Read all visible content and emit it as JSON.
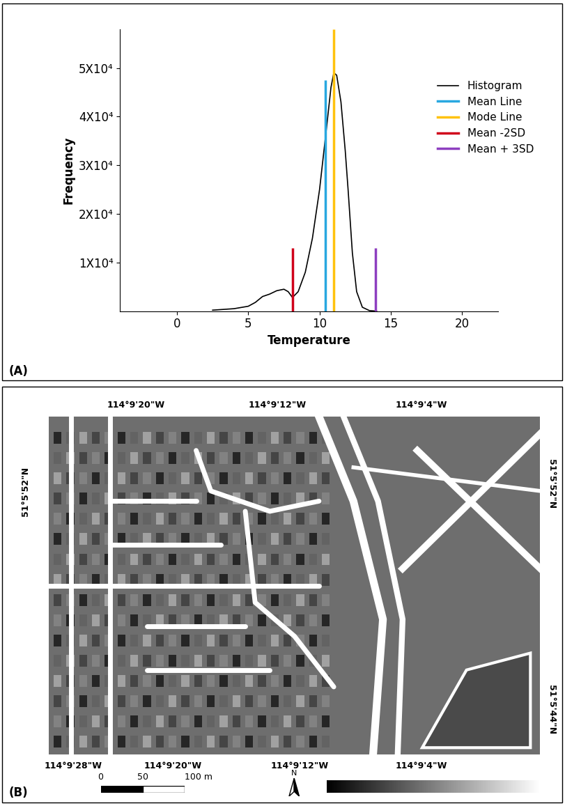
{
  "chart_data": {
    "type": "line",
    "x_label": "Temperature",
    "y_label": "Frequency",
    "xlim": [
      -4,
      22.5
    ],
    "xticks": [
      0,
      5,
      10,
      15,
      20
    ],
    "ylim": [
      0,
      58000
    ],
    "yticks": [
      {
        "value": 10000,
        "label": "1X10⁴"
      },
      {
        "value": 20000,
        "label": "2X10⁴"
      },
      {
        "value": 30000,
        "label": "3X10⁴"
      },
      {
        "value": 40000,
        "label": "4X10⁴"
      },
      {
        "value": 50000,
        "label": "5X10⁴"
      }
    ],
    "legend": "upper right",
    "series": [
      {
        "name": "Histogram",
        "color": "#000000",
        "x": [
          2.5,
          3,
          4,
          5,
          5.5,
          6,
          6.5,
          7,
          7.5,
          7.8,
          8.1,
          8.5,
          9,
          9.5,
          10,
          10.5,
          10.8,
          11,
          11.2,
          11.5,
          11.8,
          12,
          12.3,
          12.6,
          13,
          13.5,
          14
        ],
        "values": [
          200,
          300,
          500,
          1000,
          1800,
          3000,
          3500,
          4200,
          4500,
          4000,
          2800,
          4000,
          8000,
          15000,
          25000,
          38000,
          46000,
          49000,
          48500,
          43000,
          33000,
          25000,
          12000,
          4000,
          800,
          100,
          0
        ]
      }
    ],
    "lines": [
      {
        "name": "Mean Line",
        "color": "#29a8e0",
        "x": 10.4,
        "height": 47500
      },
      {
        "name": "Mode Line",
        "color": "#ffc20e",
        "x": 11.0,
        "height": 58000
      },
      {
        "name": "Mean -2SD",
        "color": "#d0021b",
        "x": 8.1,
        "height": 13000
      },
      {
        "name": "Mean + 3SD",
        "color": "#8e3fc0",
        "x": 13.9,
        "height": 13000
      }
    ]
  },
  "panel_labels": [
    "(A)",
    "(B)"
  ],
  "map": {
    "top_labels": [
      "114°9'20\"W",
      "114°9'12\"W",
      "114°9'4\"W"
    ],
    "bottom_labels": [
      "114°9'28\"W",
      "114°9'20\"W",
      "114°9'12\"W",
      "114°9'4\"W"
    ],
    "left_labels": [
      "51°5'52\"N"
    ],
    "right_labels": [
      "51°5'52\"N",
      "51°5'44\"N"
    ],
    "scale_bar": [
      {
        "value": 0,
        "label": "0"
      },
      {
        "value": 50,
        "label": "50"
      },
      {
        "value": 100,
        "label": "100 m"
      }
    ],
    "north": "N"
  }
}
